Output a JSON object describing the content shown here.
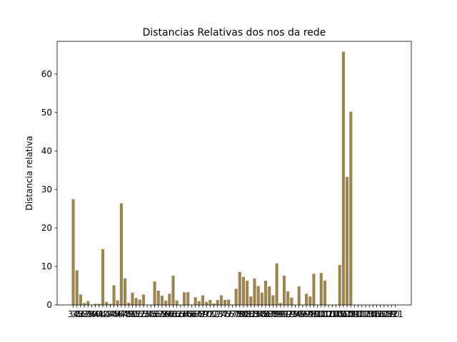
{
  "chart_data": {
    "type": "bar",
    "title": "Distancias Relativas dos nos da rede",
    "xlabel": "",
    "ylabel": "Distancia relativa",
    "ylim": [
      0,
      68.5
    ],
    "yticks": [
      0,
      10,
      20,
      30,
      40,
      50,
      60
    ],
    "bar_color": "#9c8552",
    "grid": false,
    "categories": [
      "34",
      "35",
      "36",
      "37",
      "38",
      "39",
      "40",
      "41",
      "42",
      "43",
      "44",
      "45",
      "46",
      "47",
      "48",
      "49",
      "50",
      "51",
      "52",
      "53",
      "54",
      "55",
      "56",
      "57",
      "58",
      "59",
      "60",
      "61",
      "62",
      "63",
      "64",
      "65",
      "66",
      "67",
      "68",
      "69",
      "70",
      "71",
      "72",
      "73",
      "74",
      "75",
      "76",
      "77",
      "78",
      "79",
      "80",
      "81",
      "82",
      "83",
      "84",
      "85",
      "86",
      "87",
      "88",
      "89",
      "90",
      "91",
      "92",
      "93",
      "94",
      "95",
      "96",
      "97",
      "98",
      "99",
      "100",
      "101",
      "102",
      "103",
      "104",
      "105",
      "106",
      "107",
      "108",
      "109",
      "110",
      "111",
      "112",
      "113",
      "114",
      "115",
      "116",
      "117",
      "118",
      "119",
      "120",
      "121"
    ],
    "values": [
      27.5,
      9.0,
      2.7,
      0.5,
      1.0,
      0.0,
      0.3,
      0.3,
      14.5,
      0.8,
      0.3,
      5.1,
      1.2,
      26.4,
      6.9,
      0.6,
      3.2,
      1.8,
      1.4,
      2.7,
      0.0,
      0.0,
      6.1,
      3.7,
      2.4,
      1.1,
      2.9,
      7.6,
      1.2,
      0.0,
      3.3,
      3.3,
      0.0,
      2.0,
      1.0,
      2.5,
      0.8,
      1.3,
      0.4,
      1.3,
      2.5,
      1.3,
      1.4,
      0.0,
      4.2,
      8.6,
      7.3,
      6.3,
      2.2,
      6.9,
      4.9,
      3.2,
      6.3,
      4.8,
      2.5,
      10.8,
      0.5,
      7.6,
      3.5,
      1.9,
      0.0,
      4.8,
      0.0,
      2.9,
      2.2,
      8.1,
      0.0,
      8.3,
      6.3,
      0.0,
      0.0,
      0.0,
      10.4,
      65.8,
      33.3,
      50.2,
      0.0,
      0.0,
      0.0,
      0.0,
      0.0,
      0.0,
      0.0,
      0.0,
      0.0,
      0.0,
      0.0,
      0.0
    ]
  }
}
